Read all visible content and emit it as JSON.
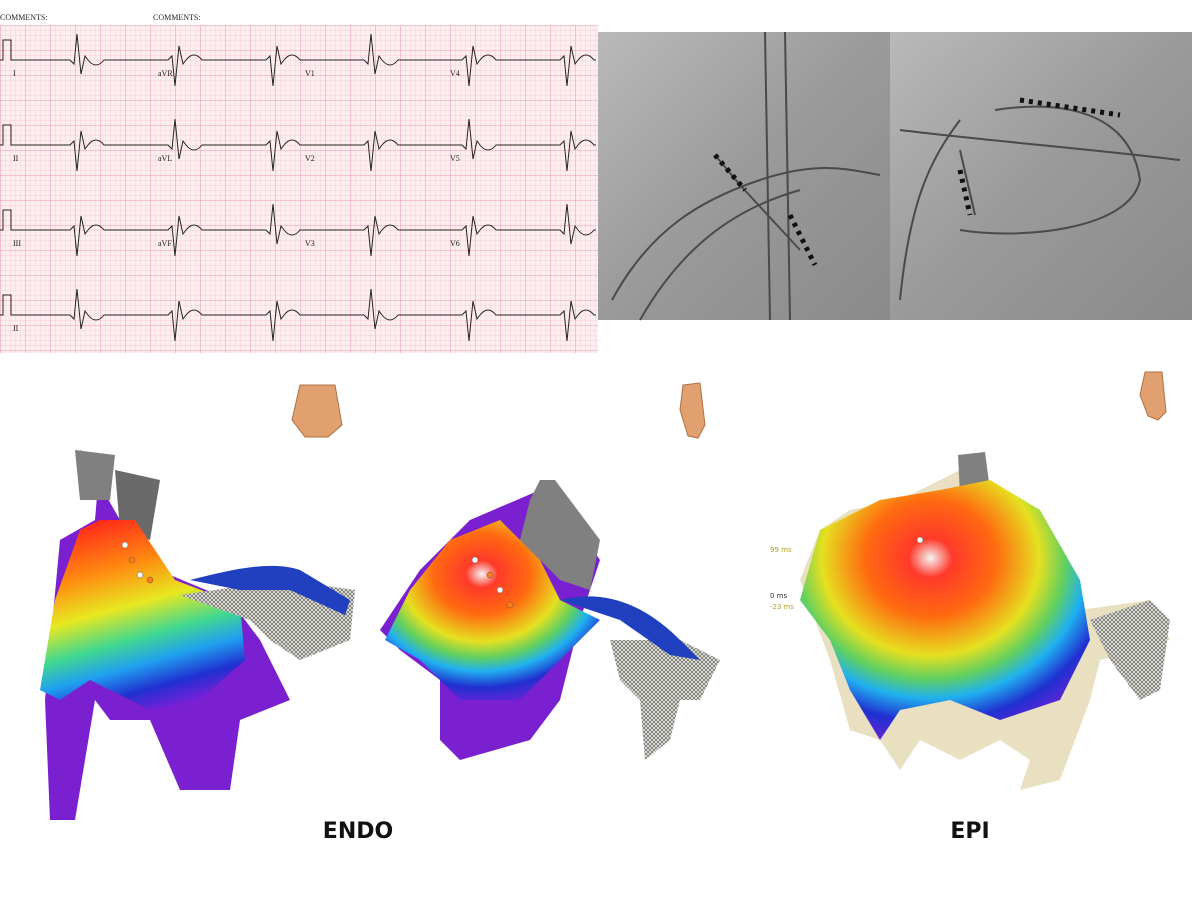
{
  "ecg": {
    "comments": [
      "COMMENTS:",
      "COMMENTS:"
    ],
    "leads": [
      [
        "I",
        "aVR",
        "V1",
        "V4"
      ],
      [
        "II",
        "aVL",
        "V2",
        "V5"
      ],
      [
        "III",
        "aVF",
        "V3",
        "V6"
      ],
      [
        "II"
      ]
    ]
  },
  "maps": {
    "scale_labels": [
      "99 ms",
      "0 ms",
      "-23 ms"
    ]
  },
  "captions": [
    "ENDO",
    "EPI"
  ]
}
